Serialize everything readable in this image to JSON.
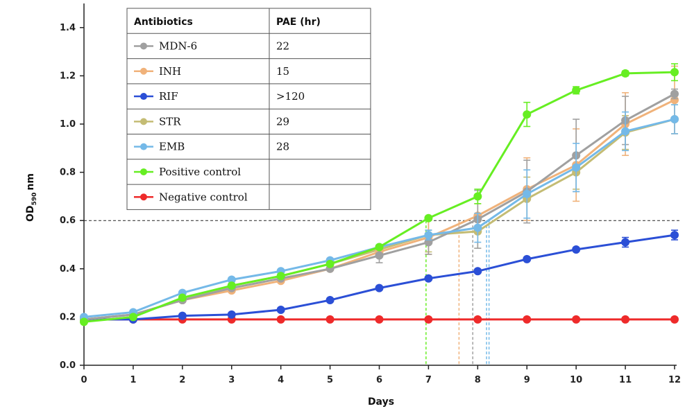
{
  "chart_data": {
    "type": "line",
    "xlabel": "Days",
    "ylabel_main": "OD",
    "ylabel_sub": "590",
    "ylabel_unit": "nm",
    "xlim": [
      0,
      12
    ],
    "ylim": [
      0,
      1.5
    ],
    "xticks": [
      "0",
      "1",
      "2",
      "3",
      "4",
      "5",
      "6",
      "7",
      "8",
      "9",
      "10",
      "11",
      "12"
    ],
    "yticks": [
      "0.0",
      "0.2",
      "0.4",
      "0.6",
      "0.8",
      "1.0",
      "1.2",
      "1.4"
    ],
    "threshold": 0.6,
    "x": [
      0,
      1,
      2,
      3,
      4,
      5,
      6,
      7,
      8,
      9,
      10,
      11,
      12
    ],
    "series": [
      {
        "name": "Positive control",
        "color": "#66ee22",
        "values": [
          0.18,
          0.2,
          0.28,
          0.33,
          0.37,
          0.42,
          0.49,
          0.61,
          0.7,
          1.04,
          1.14,
          1.21,
          1.215
        ],
        "errors": [
          0,
          0,
          0,
          0,
          0,
          0,
          0,
          0,
          0.03,
          0.05,
          0.015,
          0.01,
          0.035
        ]
      },
      {
        "name": "EMB",
        "color": "#74b9e8",
        "values": [
          0.2,
          0.22,
          0.3,
          0.355,
          0.39,
          0.435,
          0.49,
          0.54,
          0.57,
          0.71,
          0.82,
          0.97,
          1.02
        ],
        "errors": [
          0,
          0,
          0,
          0,
          0,
          0,
          0,
          0.02,
          0.06,
          0.1,
          0.1,
          0.08,
          0.06
        ]
      },
      {
        "name": "MDN-6",
        "color": "#a0a0a0",
        "values": [
          0.19,
          0.21,
          0.27,
          0.32,
          0.36,
          0.4,
          0.455,
          0.51,
          0.605,
          0.72,
          0.87,
          1.015,
          1.125
        ],
        "errors": [
          0,
          0,
          0,
          0,
          0,
          0,
          0.03,
          0.05,
          0.12,
          0.13,
          0.15,
          0.1,
          0.02
        ]
      },
      {
        "name": "INH",
        "color": "#f0b27a",
        "values": [
          0.19,
          0.21,
          0.27,
          0.31,
          0.35,
          0.4,
          0.47,
          0.53,
          0.62,
          0.73,
          0.83,
          1.0,
          1.1
        ],
        "errors": [
          0,
          0,
          0,
          0,
          0,
          0,
          0,
          0.07,
          0.05,
          0.13,
          0.15,
          0.13,
          0.14
        ]
      },
      {
        "name": "STR",
        "color": "#c4bc74",
        "values": [
          0.19,
          0.21,
          0.27,
          0.33,
          0.37,
          0.42,
          0.48,
          0.54,
          0.555,
          0.69,
          0.8,
          0.965,
          1.02
        ],
        "errors": [
          0,
          0,
          0,
          0,
          0,
          0,
          0,
          0.07,
          0.07,
          0.09,
          0.07,
          0.07,
          0.06
        ]
      },
      {
        "name": "RIF",
        "color": "#2b4fd6",
        "values": [
          0.19,
          0.19,
          0.205,
          0.21,
          0.23,
          0.27,
          0.32,
          0.36,
          0.39,
          0.44,
          0.48,
          0.51,
          0.54
        ],
        "errors": [
          0,
          0,
          0,
          0,
          0,
          0,
          0,
          0,
          0,
          0,
          0,
          0.02,
          0.02
        ]
      },
      {
        "name": "Negative control",
        "color": "#ee2a2a",
        "values": [
          0.19,
          0.19,
          0.19,
          0.19,
          0.19,
          0.19,
          0.19,
          0.19,
          0.19,
          0.19,
          0.19,
          0.19,
          0.19
        ],
        "errors": [
          0,
          0,
          0,
          0,
          0,
          0,
          0,
          0,
          0,
          0,
          0,
          0,
          0
        ]
      }
    ],
    "crossing_lines": [
      {
        "x": 6.95,
        "color": "#66ee22"
      },
      {
        "x": 7.62,
        "color": "#f0b27a"
      },
      {
        "x": 7.9,
        "color": "#a0a0a0"
      },
      {
        "x": 8.18,
        "color": "#74b9e8"
      },
      {
        "x": 8.23,
        "color": "#74b9e8"
      }
    ],
    "legend": {
      "header_left": "Antibiotics",
      "header_right": "PAE (hr)",
      "rows": [
        {
          "label": "MDN-6",
          "pae": "22",
          "color": "#a0a0a0"
        },
        {
          "label": "INH",
          "pae": "15",
          "color": "#f0b27a"
        },
        {
          "label": "RIF",
          "pae": ">120",
          "color": "#2b4fd6"
        },
        {
          "label": "STR",
          "pae": "29",
          "color": "#c4bc74"
        },
        {
          "label": "EMB",
          "pae": "28",
          "color": "#74b9e8"
        },
        {
          "label": "Positive control",
          "pae": "",
          "color": "#66ee22"
        },
        {
          "label": "Negative control",
          "pae": "",
          "color": "#ee2a2a"
        }
      ]
    }
  }
}
